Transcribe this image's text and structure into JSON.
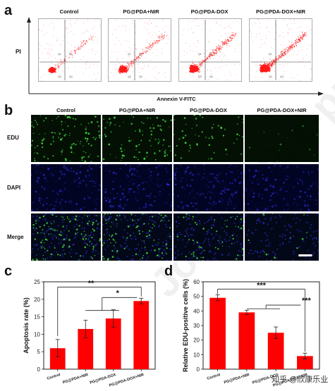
{
  "panels": {
    "a": {
      "letter": "a",
      "columns": [
        "Control",
        "PG@PDA+NIR",
        "PG@PDA-DOX",
        "PG@PDA-DOX+NIR"
      ],
      "y_label": "PI",
      "x_label": "Annexin V-FITC",
      "quadrant_labels": [
        "Q1",
        "Q2",
        "Q3",
        "Q4"
      ]
    },
    "b": {
      "letter": "b",
      "columns": [
        "Control",
        "PG@PDA+NIR",
        "PG@PDA-DOX",
        "PG@PDA-DOX+NIR"
      ],
      "rows": [
        "EDU",
        "DAPI",
        "Merge"
      ]
    },
    "c": {
      "letter": "c"
    },
    "d": {
      "letter": "d"
    }
  },
  "watermark": "Journal Pre-proof",
  "credit": "知乎 @欣康乐业",
  "colors": {
    "bar": "#ff0000",
    "edu": "#3fd33f",
    "dapi": "#2a2ccf",
    "scatter": "#ff1a1a"
  },
  "chart_data": [
    {
      "type": "bar",
      "title": "",
      "categories": [
        "Control",
        "PG@PDA+NIR",
        "PG@PDA-DOX",
        "PG@PDA-DOX+NIR"
      ],
      "values": [
        6.0,
        11.5,
        14.5,
        19.5
      ],
      "errors": [
        2.5,
        2.5,
        2.5,
        0.8
      ],
      "ylabel": "Apoptosis rate (%)",
      "xlabel": "",
      "ylim": [
        0,
        25
      ],
      "yticks": [
        0,
        5,
        10,
        15,
        20,
        25
      ],
      "significance": [
        "**",
        "*"
      ]
    },
    {
      "type": "bar",
      "title": "",
      "categories": [
        "Control",
        "PG@PDA+NIR",
        "PG@PDA-DOX",
        "PG@PDA-DOX+NIR"
      ],
      "values": [
        49,
        39,
        25,
        9
      ],
      "errors": [
        2,
        1.5,
        4,
        2
      ],
      "ylabel": "Relative EDU-positive cells (%)",
      "xlabel": "",
      "ylim": [
        0,
        60
      ],
      "yticks": [
        0,
        10,
        20,
        30,
        40,
        50,
        60
      ],
      "significance": [
        "***",
        "***"
      ]
    }
  ]
}
